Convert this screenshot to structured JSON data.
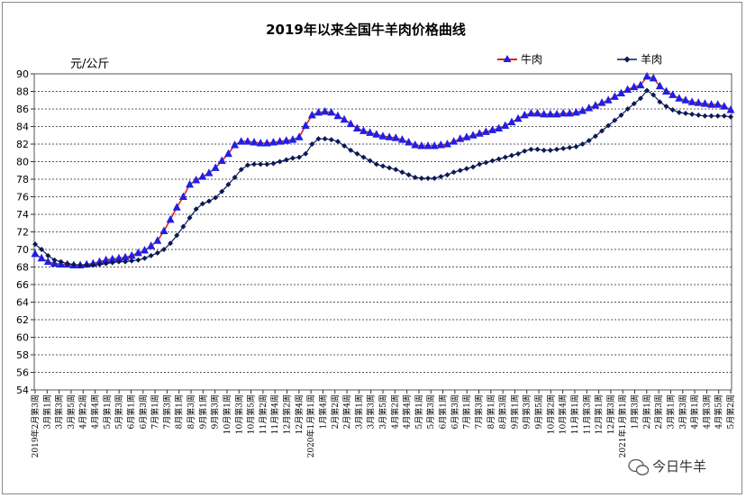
{
  "chart_data": {
    "type": "line",
    "title": "2019年以来全国牛羊肉价格曲线",
    "ylabel": "元/公斤",
    "ylim": [
      54,
      90
    ],
    "yticks": [
      54,
      56,
      58,
      60,
      62,
      64,
      66,
      68,
      70,
      72,
      74,
      76,
      78,
      80,
      82,
      84,
      86,
      88,
      90
    ],
    "grid": "horizontal",
    "legend_position": "top-right",
    "x_labels": [
      "2019年2月第3周",
      "3月第1周",
      "3月第3周",
      "3月第5周",
      "4月第2周",
      "4月第4周",
      "5月第1周",
      "5月第3周",
      "6月第1周",
      "6月第3周",
      "7月第1周",
      "7月第3周",
      "8月第1周",
      "8月第3周",
      "9月第1周",
      "9月第3周",
      "10月第1周",
      "10月第3周",
      "10月第5周",
      "11月第2周",
      "11月第4周",
      "12月第2周",
      "12月第4周",
      "2020年1月第1周",
      "1月第4周",
      "2月第2周",
      "2月第4周",
      "3月第1周",
      "3月第3周",
      "3月第5周",
      "4月第2周",
      "4月第4周",
      "5月第1周",
      "5月第3周",
      "6月第1周",
      "6月第3周",
      "7月第1周",
      "7月第3周",
      "8月第1周",
      "8月第3周",
      "9月第1周",
      "9月第3周",
      "9月第5周",
      "10月第2周",
      "10月第4周",
      "11月第1周",
      "11月第3周",
      "12月第1周",
      "12月第3周",
      "2021年1月第1周",
      "1月第3周",
      "2月第1周",
      "2月第3周",
      "3月第1周",
      "3月第3周",
      "4月第1周",
      "4月第3周",
      "4月第5周",
      "5月第2周"
    ],
    "series": [
      {
        "name": "牛肉",
        "color": "#1f1fe6",
        "marker": "triangle",
        "values": [
          69.5,
          69.0,
          68.6,
          68.4,
          68.3,
          68.3,
          68.2,
          68.2,
          68.3,
          68.4,
          68.6,
          68.8,
          68.9,
          69.0,
          69.1,
          69.3,
          69.6,
          69.9,
          70.4,
          71.0,
          72.1,
          73.4,
          74.8,
          76.0,
          77.4,
          77.9,
          78.3,
          78.7,
          79.3,
          80.1,
          80.9,
          81.9,
          82.3,
          82.3,
          82.2,
          82.1,
          82.1,
          82.2,
          82.3,
          82.4,
          82.5,
          82.8,
          84.1,
          85.3,
          85.6,
          85.7,
          85.6,
          85.2,
          84.8,
          84.3,
          83.8,
          83.5,
          83.3,
          83.1,
          82.9,
          82.8,
          82.7,
          82.5,
          82.2,
          81.9,
          81.8,
          81.8,
          81.8,
          81.9,
          82.0,
          82.3,
          82.6,
          82.8,
          83.0,
          83.2,
          83.4,
          83.6,
          83.8,
          84.1,
          84.5,
          84.9,
          85.3,
          85.5,
          85.5,
          85.4,
          85.4,
          85.4,
          85.5,
          85.5,
          85.6,
          85.8,
          86.1,
          86.4,
          86.7,
          87.0,
          87.4,
          87.8,
          88.2,
          88.5,
          88.7,
          89.7,
          89.5,
          88.6,
          88.0,
          87.6,
          87.2,
          87.0,
          86.8,
          86.7,
          86.6,
          86.5,
          86.5,
          86.3,
          85.9
        ]
      },
      {
        "name": "羊肉",
        "color": "#0b1a55",
        "marker": "diamond",
        "values": [
          70.6,
          70.0,
          69.3,
          68.8,
          68.6,
          68.4,
          68.3,
          68.2,
          68.2,
          68.2,
          68.3,
          68.4,
          68.5,
          68.6,
          68.6,
          68.7,
          68.8,
          69.0,
          69.3,
          69.6,
          70.0,
          70.7,
          71.6,
          72.6,
          73.6,
          74.6,
          75.2,
          75.5,
          75.9,
          76.6,
          77.4,
          78.2,
          79.1,
          79.6,
          79.7,
          79.7,
          79.7,
          79.8,
          80.0,
          80.2,
          80.4,
          80.5,
          80.9,
          82.0,
          82.6,
          82.6,
          82.5,
          82.3,
          81.8,
          81.3,
          80.9,
          80.5,
          80.1,
          79.7,
          79.5,
          79.3,
          79.1,
          78.8,
          78.5,
          78.2,
          78.1,
          78.1,
          78.1,
          78.3,
          78.5,
          78.8,
          79.0,
          79.2,
          79.4,
          79.7,
          79.9,
          80.1,
          80.3,
          80.5,
          80.7,
          80.9,
          81.2,
          81.4,
          81.4,
          81.3,
          81.3,
          81.4,
          81.5,
          81.6,
          81.7,
          82.0,
          82.4,
          82.9,
          83.5,
          84.1,
          84.7,
          85.3,
          86.0,
          86.6,
          87.2,
          88.1,
          87.6,
          86.8,
          86.3,
          85.9,
          85.6,
          85.5,
          85.4,
          85.3,
          85.2,
          85.2,
          85.2,
          85.2,
          85.1
        ]
      }
    ]
  },
  "watermark": {
    "icon": "wechat-bubble-icon",
    "text": "今日牛羊"
  }
}
